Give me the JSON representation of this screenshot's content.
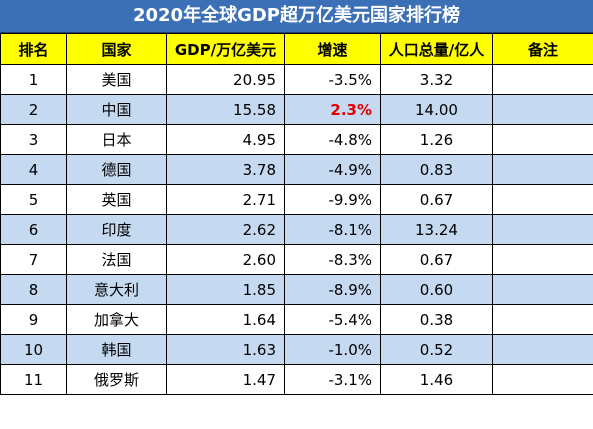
{
  "title": "2020年全球GDP超万亿美元国家排行榜",
  "headers": {
    "rank": "排名",
    "country": "国家",
    "gdp": "GDP/万亿美元",
    "growth": "增速",
    "population": "人口总量/亿人",
    "note": "备注"
  },
  "rows": [
    {
      "rank": "1",
      "country": "美国",
      "gdp": "20.95",
      "growth": "-3.5%",
      "population": "3.32",
      "note": ""
    },
    {
      "rank": "2",
      "country": "中国",
      "gdp": "15.58",
      "growth": "2.3%",
      "population": "14.00",
      "note": "",
      "highlight_growth": true
    },
    {
      "rank": "3",
      "country": "日本",
      "gdp": "4.95",
      "growth": "-4.8%",
      "population": "1.26",
      "note": ""
    },
    {
      "rank": "4",
      "country": "德国",
      "gdp": "3.78",
      "growth": "-4.9%",
      "population": "0.83",
      "note": ""
    },
    {
      "rank": "5",
      "country": "英国",
      "gdp": "2.71",
      "growth": "-9.9%",
      "population": "0.67",
      "note": ""
    },
    {
      "rank": "6",
      "country": "印度",
      "gdp": "2.62",
      "growth": "-8.1%",
      "population": "13.24",
      "note": ""
    },
    {
      "rank": "7",
      "country": "法国",
      "gdp": "2.60",
      "growth": "-8.3%",
      "population": "0.67",
      "note": ""
    },
    {
      "rank": "8",
      "country": "意大利",
      "gdp": "1.85",
      "growth": "-8.9%",
      "population": "0.60",
      "note": ""
    },
    {
      "rank": "9",
      "country": "加拿大",
      "gdp": "1.64",
      "growth": "-5.4%",
      "population": "0.38",
      "note": ""
    },
    {
      "rank": "10",
      "country": "韩国",
      "gdp": "1.63",
      "growth": "-1.0%",
      "population": "0.52",
      "note": ""
    },
    {
      "rank": "11",
      "country": "俄罗斯",
      "gdp": "1.47",
      "growth": "-3.1%",
      "population": "1.46",
      "note": ""
    }
  ],
  "colors": {
    "title_bg": "#3b6fb6",
    "header_bg": "#ffff00",
    "stripe_bg": "#c5d9f1",
    "highlight_text": "#e00000"
  }
}
